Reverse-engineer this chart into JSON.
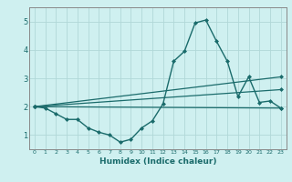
{
  "title": "",
  "xlabel": "Humidex (Indice chaleur)",
  "ylabel": "",
  "bg_color": "#cff0f0",
  "grid_color": "#b0d8d8",
  "line_color": "#1a6b6b",
  "xlim": [
    -0.5,
    23.5
  ],
  "ylim": [
    0.5,
    5.5
  ],
  "xticks": [
    0,
    1,
    2,
    3,
    4,
    5,
    6,
    7,
    8,
    9,
    10,
    11,
    12,
    13,
    14,
    15,
    16,
    17,
    18,
    19,
    20,
    21,
    22,
    23
  ],
  "yticks": [
    1,
    2,
    3,
    4,
    5
  ],
  "lines": [
    {
      "x": [
        0,
        1,
        2,
        3,
        4,
        5,
        6,
        7,
        8,
        9,
        10,
        11,
        12,
        13,
        14,
        15,
        16,
        17,
        18,
        19,
        20,
        21,
        22,
        23
      ],
      "y": [
        2.0,
        1.95,
        1.75,
        1.55,
        1.55,
        1.25,
        1.1,
        1.0,
        0.75,
        0.85,
        1.25,
        1.5,
        2.1,
        3.6,
        3.95,
        4.95,
        5.05,
        4.3,
        3.6,
        2.35,
        3.05,
        2.15,
        2.2,
        1.95
      ],
      "style": "-",
      "marker": "D",
      "markersize": 2.0,
      "linewidth": 1.0
    },
    {
      "x": [
        0,
        23
      ],
      "y": [
        2.0,
        1.95
      ],
      "style": "-",
      "marker": "D",
      "markersize": 2.0,
      "linewidth": 0.9
    },
    {
      "x": [
        0,
        23
      ],
      "y": [
        2.0,
        2.6
      ],
      "style": "-",
      "marker": "D",
      "markersize": 2.0,
      "linewidth": 0.9
    },
    {
      "x": [
        0,
        23
      ],
      "y": [
        2.0,
        3.05
      ],
      "style": "-",
      "marker": "D",
      "markersize": 2.0,
      "linewidth": 0.9
    }
  ]
}
